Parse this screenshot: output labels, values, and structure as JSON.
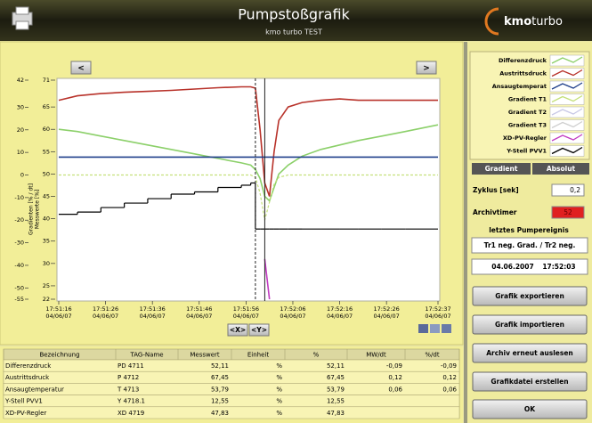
{
  "header": {
    "title": "Pumpstoßgrafik",
    "subtitle": "kmo turbo TEST",
    "logo": [
      "kmo",
      "turbo"
    ]
  },
  "nav": {
    "prev": "<",
    "next": ">",
    "x_button": "<X>",
    "y_button": "<Y>"
  },
  "chart_data": {
    "type": "line",
    "ylabel": "Messwerte [%]",
    "y2label": "Gradienten [% / dt]",
    "x": [
      "17:51:16",
      "17:51:20",
      "17:51:25",
      "17:51:30",
      "17:51:35",
      "17:51:40",
      "17:51:45",
      "17:51:50",
      "17:51:55",
      "17:51:57",
      "17:51:58",
      "17:51:59",
      "17:52:00",
      "17:52:01",
      "17:52:02",
      "17:52:03",
      "17:52:05",
      "17:52:08",
      "17:52:12",
      "17:52:16",
      "17:52:20",
      "17:52:25",
      "17:52:30",
      "17:52:37"
    ],
    "xlim": [
      "17:51:16",
      "17:52:37"
    ],
    "xticks": [
      "17:51:16",
      "17:51:26",
      "17:51:36",
      "17:51:46",
      "17:51:56",
      "17:52:06",
      "17:52:16",
      "17:52:26",
      "17:52:37"
    ],
    "x_date": "04/06/07",
    "ylim": [
      22,
      71
    ],
    "yticks": [
      22,
      25,
      30,
      35,
      40,
      45,
      50,
      55,
      60,
      65,
      71
    ],
    "y2lim": [
      -55,
      42
    ],
    "y2ticks": [
      -55,
      -50,
      -40,
      -30,
      -20,
      -10,
      0,
      10,
      20,
      30,
      42
    ],
    "grid": false,
    "cursors": [
      "17:51:58",
      "17:52:00"
    ],
    "series": [
      {
        "name": "Differenzdruck",
        "color": "#8cd06a",
        "values": [
          60,
          59.5,
          58.5,
          57.5,
          56.5,
          55.5,
          54.5,
          53.5,
          52.5,
          52,
          51,
          49,
          45,
          44,
          47,
          50,
          52,
          54,
          55.5,
          56.5,
          57.5,
          58.5,
          59.5,
          61
        ]
      },
      {
        "name": "Austrittsdruck",
        "color": "#b8322a",
        "values": [
          66.5,
          67.5,
          68,
          68.3,
          68.5,
          68.7,
          69,
          69.3,
          69.5,
          69.5,
          69.2,
          60,
          48,
          45,
          55,
          62,
          65,
          66,
          66.5,
          66.8,
          66.5,
          66.5,
          66.5,
          66.5
        ]
      },
      {
        "name": "Ansaugtemperat",
        "color": "#1f3f8a",
        "values": [
          53.8,
          53.8,
          53.8,
          53.8,
          53.8,
          53.8,
          53.8,
          53.8,
          53.8,
          53.8,
          53.8,
          53.8,
          53.8,
          53.8,
          53.8,
          53.8,
          53.8,
          53.8,
          53.8,
          53.8,
          53.8,
          53.8,
          53.8,
          53.8
        ]
      },
      {
        "name": "Gradient T1",
        "color": "#c4e07a",
        "axis": "y2",
        "dashed": true,
        "values": [
          0,
          0,
          0,
          0,
          0,
          0,
          0,
          0,
          0,
          0,
          -1,
          -8,
          -20,
          -12,
          -4,
          -1,
          0,
          0,
          0,
          0,
          0,
          0,
          0,
          0
        ]
      },
      {
        "name": "Gradient T2",
        "color": "#c8c8e6",
        "axis": "y2",
        "dashed": true,
        "values": [
          null,
          null,
          null,
          null,
          null,
          null,
          null,
          null,
          null,
          null,
          null,
          null,
          null,
          null,
          null,
          null,
          null,
          null,
          null,
          null,
          null,
          null,
          null,
          null
        ]
      },
      {
        "name": "Gradient T3",
        "color": "#cfcfcf",
        "axis": "y2",
        "dashed": true,
        "values": [
          null,
          null,
          null,
          null,
          null,
          null,
          null,
          null,
          null,
          null,
          null,
          null,
          null,
          null,
          null,
          null,
          null,
          null,
          null,
          null,
          null,
          null,
          null,
          null
        ]
      },
      {
        "name": "XD-PV-Regler",
        "color": "#c23cc2",
        "values": [
          null,
          null,
          null,
          null,
          null,
          null,
          null,
          null,
          null,
          null,
          null,
          null,
          31,
          22,
          null,
          null,
          null,
          null,
          null,
          null,
          null,
          null,
          null,
          null
        ]
      },
      {
        "name": "Y-Stell PVV1",
        "color": "#000000",
        "step": true,
        "values": [
          41,
          41.5,
          42.5,
          43.5,
          44.5,
          45.5,
          46,
          47,
          47.5,
          48,
          37.7,
          37.7,
          37.7,
          37.7,
          37.7,
          37.7,
          37.7,
          37.7,
          37.7,
          37.7,
          37.7,
          37.7,
          37.7,
          37.7
        ]
      }
    ]
  },
  "panel": {
    "mode_buttons": [
      "Gradient",
      "Absolut"
    ],
    "cycle_label": "Zyklus [sek]",
    "cycle_value": "0,2",
    "timer_label": "Archivtimer",
    "timer_value": "52",
    "event_label": "letztes Pumpereignis",
    "event_text": "Tr1 neg. Grad. / Tr2 neg.",
    "event_date": "04.06.2007",
    "event_time": "17:52:03",
    "buttons": [
      "Grafik exportieren",
      "Grafik importieren",
      "Archiv erneut auslesen",
      "Grafikdatei erstellen",
      "OK"
    ]
  },
  "table": {
    "columns": [
      "Bezeichnung",
      "TAG-Name",
      "Messwert",
      "Einheit",
      "%",
      "MW/dt",
      "%/dt"
    ],
    "rows": [
      [
        "Differenzdruck",
        "PD 4711",
        "52,11",
        "%",
        "52,11",
        "-0,09",
        "-0,09"
      ],
      [
        "Austrittsdruck",
        "P 4712",
        "67,45",
        "%",
        "67,45",
        "0,12",
        "0,12"
      ],
      [
        "Ansaugtemperatur",
        "T 4713",
        "53,79",
        "%",
        "53,79",
        "0,06",
        "0,06"
      ],
      [
        "Y-Stell PVV1",
        "Y 4718.1",
        "12,55",
        "%",
        "12,55",
        null,
        null
      ],
      [
        "XD-PV-Regler",
        "XD 4719",
        "47,83",
        "%",
        "47,83",
        null,
        null
      ]
    ]
  }
}
